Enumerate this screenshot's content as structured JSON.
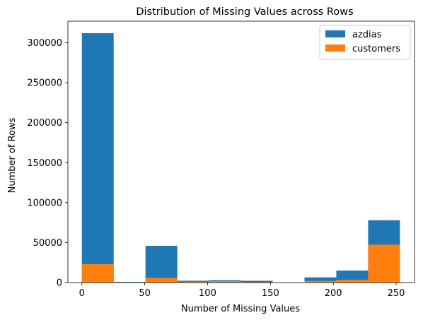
{
  "chart_data": {
    "type": "bar",
    "title": "Distribution of Missing Values across Rows",
    "xlabel": "Number of Missing Values",
    "ylabel": "Number of Rows",
    "xlim": [
      -11.1,
      264.6
    ],
    "ylim": [
      0,
      327000
    ],
    "xticks": [
      0,
      50,
      100,
      150,
      200,
      250
    ],
    "yticks": [
      0,
      50000,
      100000,
      150000,
      200000,
      250000,
      300000
    ],
    "bin_edges": [
      0,
      25.3,
      50.6,
      75.9,
      101.2,
      126.5,
      151.8,
      177.1,
      202.4,
      227.7,
      253
    ],
    "series": [
      {
        "name": "azdias",
        "color": "#1f77b4",
        "values": [
          312000,
          800,
          46000,
          2300,
          3000,
          2200,
          0,
          6500,
          15000,
          78000
        ]
      },
      {
        "name": "customers",
        "color": "#ff7f0e",
        "values": [
          23000,
          200,
          6000,
          1200,
          1800,
          700,
          0,
          2000,
          3500,
          47500
        ]
      }
    ],
    "legend_position": "upper right",
    "grid": false
  }
}
